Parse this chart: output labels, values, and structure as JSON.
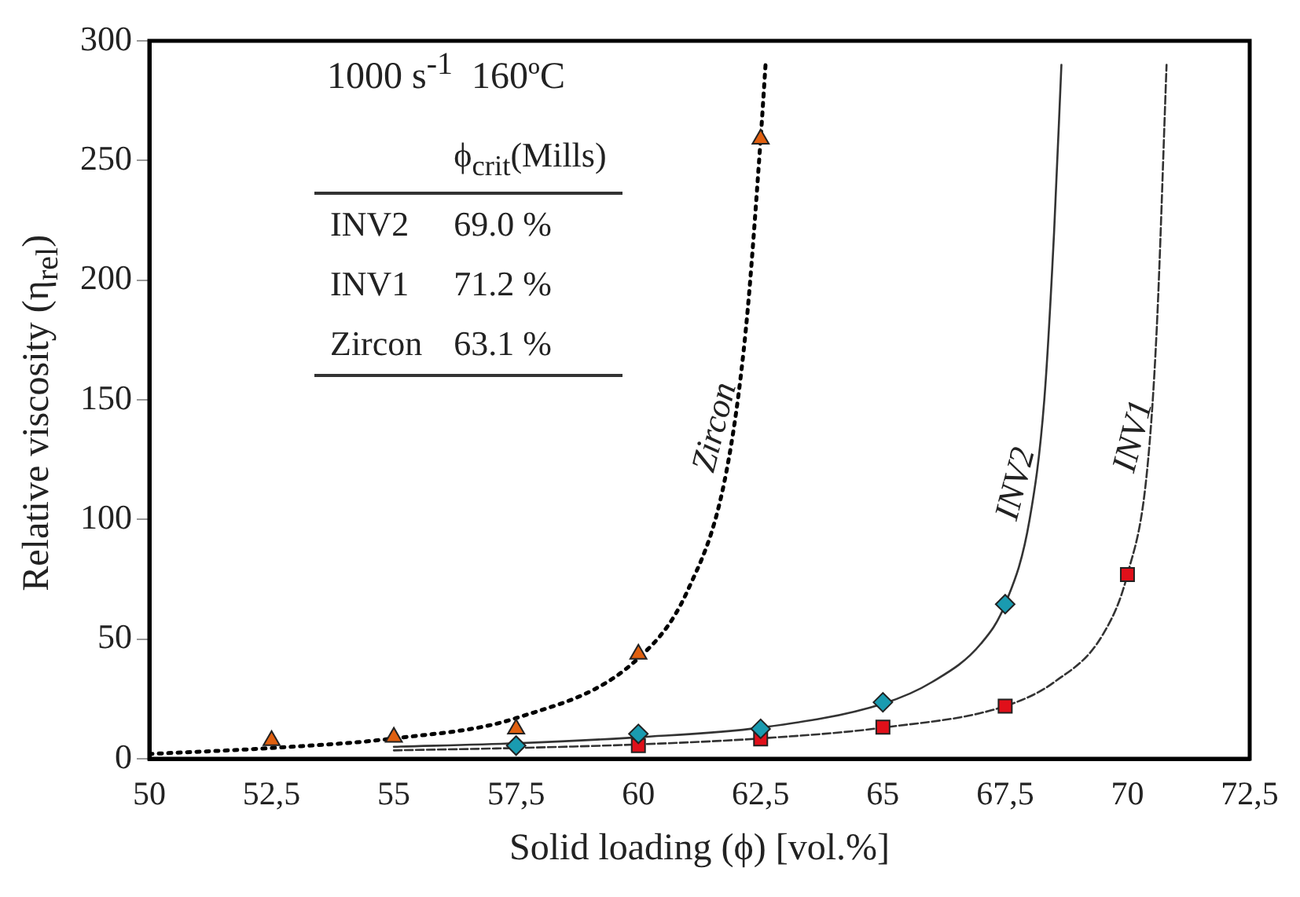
{
  "chart_data": {
    "type": "scatter",
    "xlabel": "Solid loading (ϕ) [vol.%]",
    "ylabel": "Relative viscosity (η$_{rel}$)",
    "annotations": [
      "1000 s$^{-1}$  160ºC",
      "ϕ$_{crit}$(Mills)",
      "INV2",
      "69.0 %",
      "INV1",
      "71.2 %",
      "Zircon",
      "63.1 %"
    ],
    "xlim": [
      50,
      72.5
    ],
    "xticks": [
      50,
      {
        "value": 52.5,
        "label": "52,5"
      },
      55,
      {
        "value": 57.5,
        "label": "57,5"
      },
      60,
      {
        "value": 62.5,
        "label": "62,5"
      },
      65,
      {
        "value": 67.5,
        "label": "67,5"
      },
      70,
      {
        "value": 72.5,
        "label": "72,5"
      }
    ],
    "ylim": [
      0,
      300
    ],
    "yticks": [
      0,
      50,
      100,
      150,
      200,
      250,
      300
    ],
    "grid": false,
    "legend": false,
    "series": [
      {
        "type": "scatter",
        "color": "#e06010",
        "marker": "triangle",
        "x": [
          52.5,
          55,
          57.5,
          60,
          62.5
        ],
        "values": [
          7.6,
          9,
          12.5,
          43.7,
          259
        ]
      },
      {
        "type": "scatter",
        "color": "#1a9bb0",
        "marker": "diamond",
        "x": [
          57.5,
          60,
          62.5,
          65,
          67.5
        ],
        "values": [
          5.5,
          10.4,
          12.5,
          23.6,
          64.6
        ]
      },
      {
        "type": "scatter",
        "color": "#e0101a",
        "marker": "square",
        "x": [
          60,
          62.5,
          65,
          67.5,
          70
        ],
        "values": [
          5.5,
          8.3,
          13.2,
          22,
          77
        ]
      },
      {
        "type": "line",
        "name": "Zircon",
        "color": "#000000",
        "marker": "none",
        "line_style": "dotted",
        "x": [
          50,
          52.5,
          55,
          57.5,
          60,
          61,
          61.8,
          62.2,
          62.5,
          62.6
        ],
        "values": [
          2,
          4.5,
          8.5,
          17,
          42,
          70,
          120,
          180,
          259,
          290
        ]
      },
      {
        "type": "line",
        "name": "INV2",
        "color": "#333333",
        "marker": "none",
        "line_style": "solid",
        "x": [
          55,
          57.5,
          60,
          62.5,
          65,
          66,
          67,
          67.5,
          68,
          68.3,
          68.5,
          68.65
        ],
        "values": [
          5,
          6.5,
          9,
          13,
          23,
          32,
          48,
          64.6,
          100,
          150,
          220,
          290
        ]
      },
      {
        "type": "line",
        "name": "INV1",
        "color": "#333333",
        "marker": "none",
        "line_style": "dashed",
        "x": [
          55,
          57.5,
          60,
          62.5,
          65,
          67.5,
          68.5,
          69.5,
          70,
          70.4,
          70.6,
          70.8
        ],
        "values": [
          3.5,
          4.5,
          6,
          8.5,
          13,
          22,
          32,
          52,
          77,
          120,
          180,
          290
        ]
      }
    ]
  }
}
